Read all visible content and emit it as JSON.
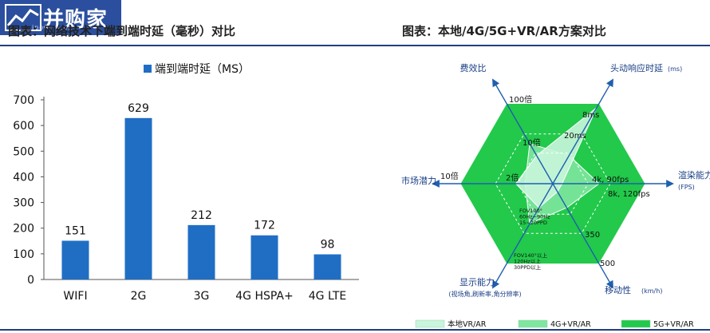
{
  "header": {
    "logo_text": "并购家",
    "logo_url": "ipobom.cn",
    "left_title": "图表：网络技术下端到端时延（毫秒）对比",
    "right_title": "图表：本地/4G/5G+VR/AR方案对比"
  },
  "chart_data": [
    {
      "type": "bar",
      "categories": [
        "WIFI",
        "2G",
        "3G",
        "4G HSPA+",
        "4G LTE"
      ],
      "series": [
        {
          "name": "端到端时延（MS）",
          "values": [
            151,
            629,
            212,
            172,
            98
          ]
        }
      ],
      "ylim": [
        0,
        700
      ],
      "yticks": [
        "0",
        "100",
        "200",
        "300",
        "400",
        "500",
        "600",
        "700"
      ],
      "bar_color": "#1f6ec4",
      "legend_position": "top",
      "grid": false
    },
    {
      "type": "radar",
      "axes": [
        {
          "name": "头动响应时延",
          "unit": "(ms)",
          "ticks": [
            "20ms",
            "8ms"
          ]
        },
        {
          "name": "渲染能力",
          "unit": "(FPS)",
          "ticks": [
            "4k, 90fps",
            "8k, 120fps"
          ]
        },
        {
          "name": "移动性",
          "unit": "(km/h)",
          "ticks": [
            "350",
            "500"
          ]
        },
        {
          "name": "显示能力",
          "unit": "(视场角,刷新率,角分辨率)",
          "ticks": [
            "FOV100°\n60Hz~90Hz\n15~20PPD",
            "FOV140°以上\n120Hz以上\n30PPD以上"
          ]
        },
        {
          "name": "市场潜力",
          "unit": "",
          "ticks": [
            "2倍",
            "10倍"
          ]
        },
        {
          "name": "费效比",
          "unit": "",
          "ticks": [
            "10倍",
            "100倍"
          ]
        }
      ],
      "series": [
        {
          "name": "本地VR/AR",
          "color": "#c9f5dc",
          "values": [
            0.95,
            0.1,
            0.1,
            0.3,
            0.4,
            0.35
          ]
        },
        {
          "name": "4G+VR/AR",
          "color": "#7ee69f",
          "values": [
            0.35,
            0.5,
            0.3,
            0.5,
            0.3,
            0.5
          ]
        },
        {
          "name": "5G+VR/AR",
          "color": "#22c94a",
          "values": [
            1,
            1,
            1,
            1,
            1,
            1
          ]
        }
      ],
      "legend_position": "bottom"
    }
  ]
}
